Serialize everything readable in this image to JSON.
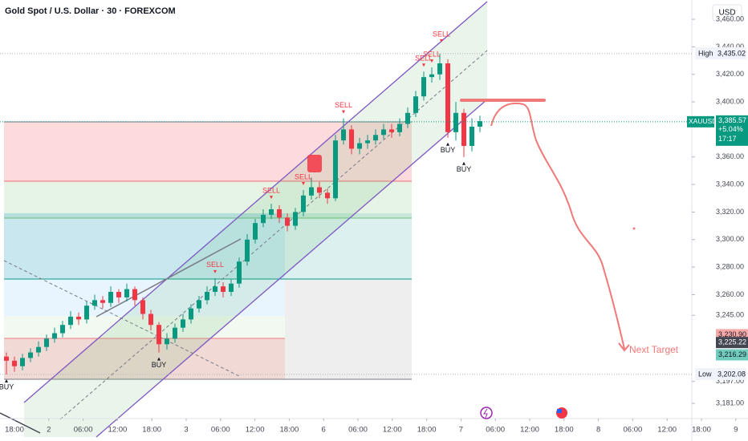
{
  "chart_data": {
    "type": "candlestick",
    "title": "Gold Spot / U.S. Dollar · 30 · FOREXCOM",
    "currency": "USD",
    "ylim": [
      3170,
      3474
    ],
    "yticks": [
      {
        "value": 3181,
        "label": "3,181.00"
      },
      {
        "value": 3197,
        "label": "3,197.00"
      },
      {
        "value": 3245,
        "label": "3,245.00"
      },
      {
        "value": 3260,
        "label": "3,260.00"
      },
      {
        "value": 3280,
        "label": "3,280.00"
      },
      {
        "value": 3300,
        "label": "3,300.00"
      },
      {
        "value": 3320,
        "label": "3,320.00"
      },
      {
        "value": 3340,
        "label": "3,340.00"
      },
      {
        "value": 3360,
        "label": "3,360.00"
      },
      {
        "value": 3400,
        "label": "3,400.00"
      },
      {
        "value": 3420,
        "label": "3,420.00"
      },
      {
        "value": 3440,
        "label": "3,440.00"
      },
      {
        "value": 3460,
        "label": "3,460.00"
      }
    ],
    "xticks": [
      "18:00",
      "2",
      "06:00",
      "12:00",
      "18:00",
      "3",
      "06:00",
      "12:00",
      "18:00",
      "6",
      "06:00",
      "12:00",
      "18:00",
      "7",
      "06:00",
      "12:00",
      "18:00",
      "8",
      "06:00",
      "12:00",
      "18:00",
      "9"
    ],
    "up_color": "#089981",
    "down_color": "#f23645",
    "open": [
      3215,
      3212,
      3208,
      3214,
      3218,
      3222,
      3228,
      3232,
      3238,
      3244,
      3242,
      3252,
      3256,
      3254,
      3262,
      3258,
      3264,
      3256,
      3246,
      3238,
      3224,
      3228,
      3236,
      3242,
      3250,
      3256,
      3262,
      3266,
      3262,
      3268,
      3284,
      3300,
      3312,
      3318,
      3322,
      3316,
      3310,
      3320,
      3332,
      3338,
      3334,
      3330,
      3372,
      3380,
      3366,
      3370,
      3372,
      3376,
      3380,
      3378,
      3384,
      3392,
      3404,
      3418,
      3420,
      3428,
      3378,
      3392,
      3368,
      3382
    ],
    "high": [
      3218,
      3215,
      3217,
      3221,
      3226,
      3231,
      3236,
      3241,
      3248,
      3247,
      3255,
      3260,
      3259,
      3266,
      3264,
      3268,
      3266,
      3258,
      3249,
      3240,
      3232,
      3239,
      3246,
      3253,
      3259,
      3266,
      3272,
      3269,
      3271,
      3287,
      3304,
      3315,
      3322,
      3326,
      3325,
      3319,
      3323,
      3336,
      3345,
      3342,
      3337,
      3376,
      3388,
      3383,
      3374,
      3376,
      3380,
      3384,
      3384,
      3388,
      3396,
      3408,
      3422,
      3425,
      3435.02,
      3431,
      3400,
      3395,
      3388,
      3390
    ],
    "low": [
      3202,
      3204,
      3205,
      3211,
      3215,
      3219,
      3225,
      3229,
      3235,
      3238,
      3239,
      3249,
      3250,
      3251,
      3254,
      3255,
      3252,
      3242,
      3234,
      3218,
      3220,
      3225,
      3233,
      3239,
      3247,
      3253,
      3259,
      3258,
      3259,
      3265,
      3281,
      3297,
      3309,
      3315,
      3312,
      3306,
      3307,
      3317,
      3329,
      3330,
      3326,
      3328,
      3369,
      3362,
      3362,
      3366,
      3369,
      3373,
      3374,
      3375,
      3381,
      3389,
      3401,
      3414,
      3416,
      3374,
      3372,
      3360,
      3364,
      3378
    ],
    "close": [
      3212,
      3208,
      3214,
      3218,
      3222,
      3228,
      3232,
      3238,
      3244,
      3242,
      3252,
      3256,
      3254,
      3262,
      3258,
      3264,
      3256,
      3246,
      3238,
      3224,
      3228,
      3236,
      3242,
      3250,
      3256,
      3262,
      3266,
      3262,
      3268,
      3284,
      3300,
      3312,
      3318,
      3322,
      3316,
      3310,
      3320,
      3332,
      3338,
      3334,
      3330,
      3372,
      3380,
      3366,
      3370,
      3372,
      3376,
      3380,
      3378,
      3384,
      3392,
      3404,
      3418,
      3420,
      3428,
      3378,
      3392,
      3368,
      3382,
      3386
    ],
    "signals": [
      "BUY",
      "BUY",
      "SELL",
      "SELL",
      "SELL",
      "SELL",
      "SELL",
      "SELL",
      "SELL",
      "BUY",
      "BUY"
    ],
    "price_markers": [
      {
        "name": "High",
        "value": 3435.02,
        "value_label": "3,435.02"
      },
      {
        "name": "Low",
        "value": 3202.08,
        "value_label": "3,202.08"
      }
    ],
    "current": {
      "name": "XAUUSD",
      "value": 3385.57,
      "value_label": "3,385.57",
      "change": "+5.04%",
      "countdown": "17:17"
    },
    "levels": [
      {
        "value": 3230.9,
        "value_label": "3,230.90",
        "color": "#f7a9a7"
      },
      {
        "value": 3225.22,
        "value_label": "3,225.22",
        "color": "#434651"
      },
      {
        "value": 3216.29,
        "value_label": "3,216.29",
        "color": "#70ccbd"
      }
    ],
    "annotation": "Next Target"
  }
}
